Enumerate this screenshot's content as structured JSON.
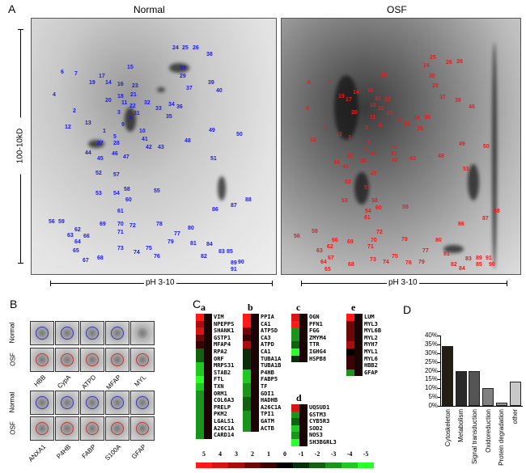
{
  "panel_letters": {
    "a": "A",
    "b": "B",
    "c": "C",
    "d": "D"
  },
  "panel_a": {
    "normal_title": "Normal",
    "osf_title": "OSF",
    "mw_label": "100-10kD",
    "ph_label_normal": "pH 3-10",
    "ph_label_osf": "pH 3-10",
    "normal_spot_color": "#1a1aee",
    "osf_spot_color": "#ee1a1a",
    "spots": [
      "1",
      "2",
      "3",
      "4",
      "5",
      "6",
      "7",
      "8",
      "9",
      "10",
      "11",
      "12",
      "13",
      "14",
      "15",
      "16",
      "17",
      "18",
      "19",
      "20",
      "21",
      "22",
      "23",
      "24",
      "25",
      "26",
      "27",
      "28",
      "29",
      "30",
      "31",
      "32",
      "33",
      "34",
      "35",
      "36",
      "37",
      "38",
      "39",
      "40",
      "41",
      "42",
      "43",
      "44",
      "45",
      "46",
      "47",
      "48",
      "49",
      "50",
      "51",
      "52",
      "53",
      "54",
      "55",
      "56",
      "57",
      "58",
      "59",
      "60",
      "61",
      "62",
      "63",
      "64",
      "65",
      "66",
      "67",
      "68",
      "69",
      "70",
      "71",
      "72",
      "73",
      "74",
      "75",
      "76",
      "77",
      "78",
      "79",
      "80",
      "81",
      "82",
      "83",
      "84",
      "85",
      "86",
      "87",
      "88",
      "89",
      "90",
      "91"
    ]
  },
  "panel_b": {
    "row_labels": [
      "Normal",
      "OSF",
      "Normal",
      "OSF"
    ],
    "group1": [
      "HBB",
      "CypA",
      "ATPD",
      "MFAP",
      "MYL"
    ],
    "group2": [
      "ANXA1",
      "P4HB",
      "FABP",
      "S100A",
      "GFAP"
    ]
  },
  "panel_c": {
    "groups": [
      {
        "title": "a",
        "genes": [
          "VIM",
          "NPEPPS",
          "SHANK1",
          "GSTP1",
          "MFAP4",
          "RPA2",
          "ORF",
          "MRPS31",
          "STAB2",
          "FTL",
          "TXN",
          "ORM1",
          "COL6A3",
          "PRELP",
          "PKM2",
          "LGALS1",
          "A26C1A",
          "CARD14"
        ],
        "values": [
          5,
          3,
          4,
          2,
          1,
          -2,
          -2,
          -4,
          -4,
          -5,
          -4,
          -3,
          -3,
          -3,
          -3,
          -3,
          -3,
          -3
        ]
      },
      {
        "title": "b",
        "genes": [
          "PPIA",
          "CA1",
          "ATP5D",
          "CA3",
          "ATPD",
          "CA1",
          "TUBA1A",
          "TUBA1B",
          "P4HB",
          "FABP5",
          "TF",
          "GDI1",
          "HADHB",
          "A26C1A",
          "TPI1",
          "GATM",
          "ACTB"
        ],
        "values": [
          5,
          5,
          2,
          1,
          3,
          -1,
          -1,
          -1,
          -4,
          -4,
          -3,
          -3,
          -2,
          -2,
          -3,
          -3,
          -3
        ]
      },
      {
        "title": "c",
        "genes": [
          "OGN",
          "PFN1",
          "FGG",
          "ZMYM4",
          "TTR",
          "IGHG4",
          "HSPB8"
        ],
        "values": [
          4,
          5,
          -3,
          -3,
          -2,
          -5,
          -1
        ]
      },
      {
        "title": "d",
        "genes": [
          "UQSUD1",
          "GSTM3",
          "CYB5R3",
          "SOD2",
          "NOS3",
          "SH3BGRL3"
        ],
        "values": [
          4,
          -3,
          -2,
          -4,
          -3,
          -5
        ]
      },
      {
        "title": "e",
        "genes": [
          "LUM",
          "MYL3",
          "MYL6B",
          "MYL2",
          "MYH7",
          "MYL1",
          "MYL6",
          "HBB2",
          "GFAP"
        ],
        "values": [
          5,
          2,
          2,
          2,
          3,
          0,
          1,
          1,
          -3
        ]
      }
    ],
    "scale": [
      "5",
      "4",
      "3",
      "2",
      "1",
      "0",
      "-1",
      "-2",
      "-3",
      "-4",
      "-5"
    ],
    "scale_colors": [
      "#ff1a1a",
      "#d81414",
      "#a80e0e",
      "#6e0808",
      "#3a0404",
      "#000000",
      "#0a2e0a",
      "#136013",
      "#1a941a",
      "#22c822",
      "#2aff2a"
    ]
  },
  "chart_data": {
    "type": "bar",
    "categories": [
      "Cytoskeleton",
      "Metabolism",
      "Signal transduction",
      "Oxidoreduction",
      "Protein degradation",
      "other"
    ],
    "values": [
      34,
      20,
      20,
      10,
      2,
      14
    ],
    "colors": [
      "#221f12",
      "#2a2a2a",
      "#555555",
      "#808080",
      "#999999",
      "#c8c8c8"
    ],
    "yticks": [
      "0%",
      "5%",
      "10%",
      "15%",
      "20%",
      "25%",
      "30%",
      "35%",
      "40%"
    ],
    "ylim": [
      0,
      40
    ],
    "grid": false
  }
}
